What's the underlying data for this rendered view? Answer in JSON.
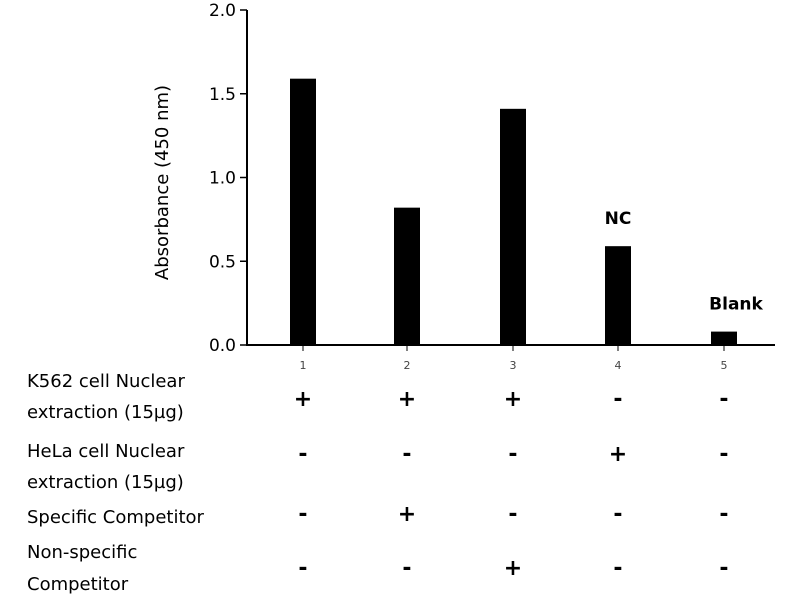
{
  "chart_data": {
    "type": "bar",
    "title": "",
    "ylabel": "Absorbance (450 nm)",
    "xlabel": "",
    "ylim": [
      0,
      2.0
    ],
    "yticks": [
      "0.0",
      "0.5",
      "1.0",
      "1.5",
      "2.0"
    ],
    "ytick_values": [
      0,
      0.5,
      1.0,
      1.5,
      2.0
    ],
    "categories": [
      "1",
      "2",
      "3",
      "4",
      "5"
    ],
    "values": [
      1.59,
      0.82,
      1.41,
      0.59,
      0.08
    ],
    "bar_color": "#000000",
    "annotations": [
      {
        "category_index": 3,
        "text": "NC"
      },
      {
        "category_index": 4,
        "text": "Blank"
      }
    ]
  },
  "conditions": [
    {
      "label_lines": [
        "K562 cell Nuclear",
        "extraction (15µg)"
      ],
      "signs": [
        "+",
        "+",
        "+",
        "-",
        "-"
      ]
    },
    {
      "label_lines": [
        "HeLa cell Nuclear",
        "extraction (15µg)"
      ],
      "signs": [
        "-",
        "-",
        "-",
        "+",
        "-"
      ]
    },
    {
      "label_lines": [
        "Specific Competitor"
      ],
      "signs": [
        "-",
        "+",
        "-",
        "-",
        "-"
      ]
    },
    {
      "label_lines": [
        "Non-specific",
        "Competitor"
      ],
      "signs": [
        "-",
        "-",
        "+",
        "-",
        "-"
      ]
    }
  ]
}
